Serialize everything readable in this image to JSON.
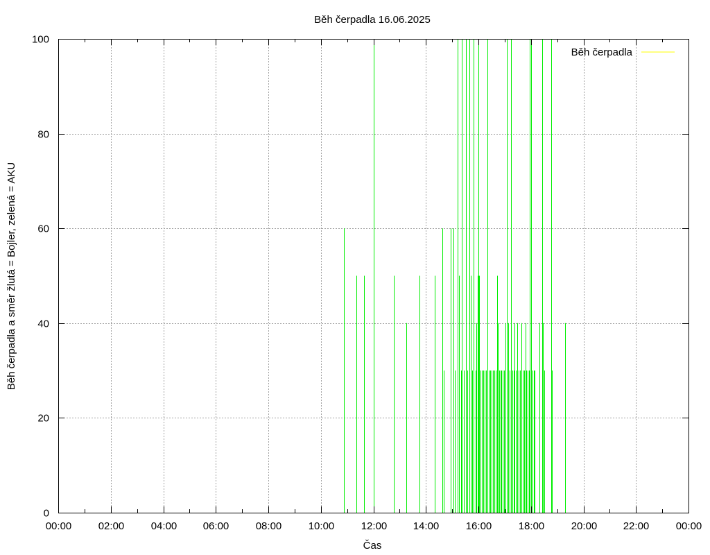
{
  "colors": {
    "pump_series": "#00ee00",
    "legend_line": "#ffff00",
    "grid": "#a0a0a0",
    "axis": "#000000",
    "background": "#ffffff"
  },
  "chart_data": {
    "type": "line",
    "title": "Běh čerpadla 16.06.2025",
    "xlabel": "Čas",
    "ylabel": "Běh čerpadla a směr žlutá = Bojler, zelená = AKU",
    "xlim": [
      "00:00",
      "24:00"
    ],
    "ylim": [
      0,
      100
    ],
    "grid": true,
    "legend_position": "top-right",
    "x_ticks": [
      "00:00",
      "02:00",
      "04:00",
      "06:00",
      "08:00",
      "10:00",
      "12:00",
      "14:00",
      "16:00",
      "18:00",
      "20:00",
      "22:00",
      "00:00"
    ],
    "y_ticks": [
      0,
      20,
      40,
      60,
      80,
      100
    ],
    "legend": [
      {
        "name": "Běh čerpadla",
        "color": "#ffff00"
      }
    ],
    "series": [
      {
        "name": "",
        "color": "#00ee00",
        "style": "impulses",
        "points": [
          [
            "10:52",
            60
          ],
          [
            "11:21",
            50
          ],
          [
            "11:39",
            50
          ],
          [
            "12:00",
            100
          ],
          [
            "12:01",
            30
          ],
          [
            "12:47",
            50
          ],
          [
            "13:15",
            40
          ],
          [
            "13:45",
            50
          ],
          [
            "14:20",
            50
          ],
          [
            "14:38",
            60
          ],
          [
            "14:40",
            30
          ],
          [
            "14:56",
            60
          ],
          [
            "15:03",
            60
          ],
          [
            "15:06",
            30
          ],
          [
            "15:12",
            100
          ],
          [
            "15:16",
            50
          ],
          [
            "15:20",
            30
          ],
          [
            "15:22",
            100
          ],
          [
            "15:27",
            30
          ],
          [
            "15:31",
            100
          ],
          [
            "15:35",
            30
          ],
          [
            "15:39",
            100
          ],
          [
            "15:43",
            50
          ],
          [
            "15:46",
            30
          ],
          [
            "15:49",
            100
          ],
          [
            "15:53",
            30
          ],
          [
            "15:56",
            40
          ],
          [
            "15:58",
            50
          ],
          [
            "16:00",
            100
          ],
          [
            "16:02",
            50
          ],
          [
            "16:05",
            30
          ],
          [
            "16:08",
            30
          ],
          [
            "16:11",
            30
          ],
          [
            "16:15",
            30
          ],
          [
            "16:18",
            30
          ],
          [
            "16:21",
            100
          ],
          [
            "16:24",
            30
          ],
          [
            "16:27",
            30
          ],
          [
            "16:30",
            30
          ],
          [
            "16:33",
            30
          ],
          [
            "16:36",
            30
          ],
          [
            "16:39",
            30
          ],
          [
            "16:42",
            50
          ],
          [
            "16:44",
            40
          ],
          [
            "16:47",
            30
          ],
          [
            "16:50",
            30
          ],
          [
            "16:53",
            30
          ],
          [
            "16:56",
            30
          ],
          [
            "16:59",
            30
          ],
          [
            "17:02",
            40
          ],
          [
            "17:05",
            100
          ],
          [
            "17:08",
            40
          ],
          [
            "17:11",
            30
          ],
          [
            "17:14",
            100
          ],
          [
            "17:17",
            30
          ],
          [
            "17:20",
            30
          ],
          [
            "17:23",
            40
          ],
          [
            "17:26",
            30
          ],
          [
            "17:29",
            40
          ],
          [
            "17:32",
            30
          ],
          [
            "17:35",
            30
          ],
          [
            "17:38",
            40
          ],
          [
            "17:41",
            30
          ],
          [
            "17:44",
            30
          ],
          [
            "17:47",
            40
          ],
          [
            "17:50",
            30
          ],
          [
            "17:53",
            30
          ],
          [
            "17:56",
            30
          ],
          [
            "17:58",
            100
          ],
          [
            "18:00",
            100
          ],
          [
            "18:03",
            30
          ],
          [
            "18:06",
            30
          ],
          [
            "18:09",
            30
          ],
          [
            "18:20",
            40
          ],
          [
            "18:26",
            100
          ],
          [
            "18:28",
            40
          ],
          [
            "18:31",
            30
          ],
          [
            "18:46",
            100
          ],
          [
            "18:48",
            30
          ],
          [
            "19:18",
            40
          ]
        ]
      }
    ]
  }
}
